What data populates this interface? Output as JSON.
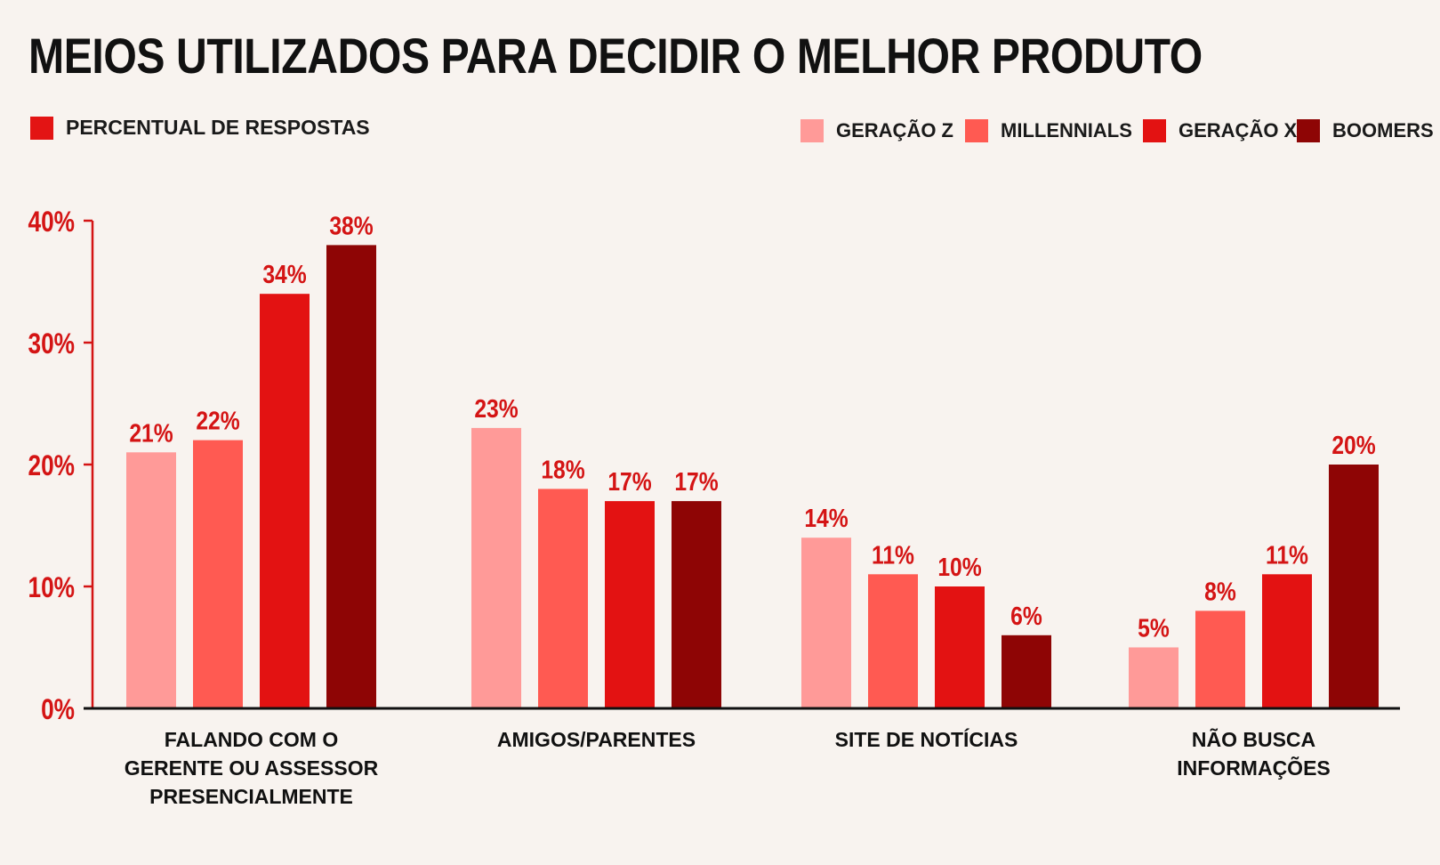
{
  "title": "MEIOS UTILIZADOS PARA DECIDIR O MELHOR PRODUTO",
  "subtitle": "PERCENTUAL DE RESPOSTAS",
  "colors": {
    "label_red": "#d41414",
    "axis_red": "#d41414",
    "axis_black": "#111111",
    "subtitle_square": "#e31414"
  },
  "chart_data": {
    "type": "bar",
    "title": "MEIOS UTILIZADOS PARA DECIDIR O MELHOR PRODUTO",
    "subtitle": "PERCENTUAL DE RESPOSTAS",
    "categories": [
      [
        "FALANDO COM O",
        "GERENTE OU ASSESSOR",
        "PRESENCIALMENTE"
      ],
      [
        "AMIGOS/PARENTES"
      ],
      [
        "SITE DE NOTÍCIAS"
      ],
      [
        "NÃO BUSCA",
        "INFORMAÇÕES"
      ]
    ],
    "series": [
      {
        "name": "GERAÇÃO Z",
        "color": "#ff9a98",
        "values": [
          21,
          23,
          14,
          5
        ],
        "labels": [
          "21%",
          "23%",
          "14%",
          "5%"
        ]
      },
      {
        "name": "MILLENNIALS",
        "color": "#ff5a52",
        "values": [
          22,
          18,
          11,
          8
        ],
        "labels": [
          "22%",
          "18%",
          "11%",
          "8%"
        ]
      },
      {
        "name": "GERAÇÃO X",
        "color": "#e31212",
        "values": [
          34,
          17,
          10,
          11
        ],
        "labels": [
          "34%",
          "17%",
          "10%",
          "11%"
        ]
      },
      {
        "name": "BOOMERS",
        "color": "#8e0505",
        "values": [
          38,
          17,
          6,
          20
        ],
        "labels": [
          "38%",
          "17%",
          "6%",
          "20%"
        ]
      }
    ],
    "y_ticks": [
      0,
      10,
      20,
      30,
      40
    ],
    "y_tick_labels": [
      "0%",
      "10%",
      "20%",
      "30%",
      "40%"
    ],
    "ylim": [
      0,
      40
    ],
    "grid": false,
    "legend_position": "top-right"
  }
}
